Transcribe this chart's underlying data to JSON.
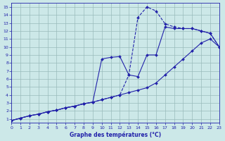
{
  "xlabel": "Graphe des températures (°C)",
  "xlim": [
    0,
    23
  ],
  "ylim": [
    0.5,
    15.5
  ],
  "xticks": [
    0,
    1,
    2,
    3,
    4,
    5,
    6,
    7,
    8,
    9,
    10,
    11,
    12,
    13,
    14,
    15,
    16,
    17,
    18,
    19,
    20,
    21,
    22,
    23
  ],
  "yticks": [
    1,
    2,
    3,
    4,
    5,
    6,
    7,
    8,
    9,
    10,
    11,
    12,
    13,
    14,
    15
  ],
  "bg_color": "#cce8e8",
  "line_color": "#2222aa",
  "grid_color": "#99bbbb",
  "line_dashed_x": [
    0,
    1,
    2,
    3,
    4,
    5,
    6,
    7,
    8,
    9,
    10,
    11,
    12,
    13,
    14,
    15,
    16,
    17,
    18,
    19,
    20,
    21,
    22,
    23
  ],
  "line_dashed_y": [
    0.8,
    1.1,
    1.4,
    1.6,
    1.9,
    2.1,
    2.4,
    2.6,
    2.9,
    3.1,
    3.4,
    3.7,
    4.0,
    6.5,
    13.7,
    15.0,
    14.5,
    12.9,
    12.5,
    12.3,
    12.3,
    12.0,
    11.7,
    10.0
  ],
  "line_solid1_x": [
    0,
    1,
    2,
    3,
    4,
    5,
    6,
    7,
    8,
    9,
    10,
    11,
    12,
    13,
    14,
    15,
    16,
    17,
    18,
    19,
    20,
    21,
    22,
    23
  ],
  "line_solid1_y": [
    0.8,
    1.1,
    1.4,
    1.6,
    1.9,
    2.1,
    2.4,
    2.6,
    2.9,
    3.1,
    8.5,
    8.7,
    8.8,
    6.5,
    6.3,
    9.0,
    9.0,
    12.5,
    12.3,
    12.3,
    12.3,
    12.0,
    11.7,
    10.0
  ],
  "line_solid2_x": [
    0,
    1,
    2,
    3,
    4,
    5,
    6,
    7,
    8,
    9,
    10,
    11,
    12,
    13,
    14,
    15,
    16,
    17,
    18,
    19,
    20,
    21,
    22,
    23
  ],
  "line_solid2_y": [
    0.8,
    1.1,
    1.4,
    1.6,
    1.9,
    2.1,
    2.4,
    2.6,
    2.9,
    3.1,
    3.4,
    3.7,
    4.0,
    4.3,
    4.6,
    4.9,
    5.5,
    6.5,
    7.5,
    8.5,
    9.5,
    10.5,
    11.0,
    10.0
  ]
}
